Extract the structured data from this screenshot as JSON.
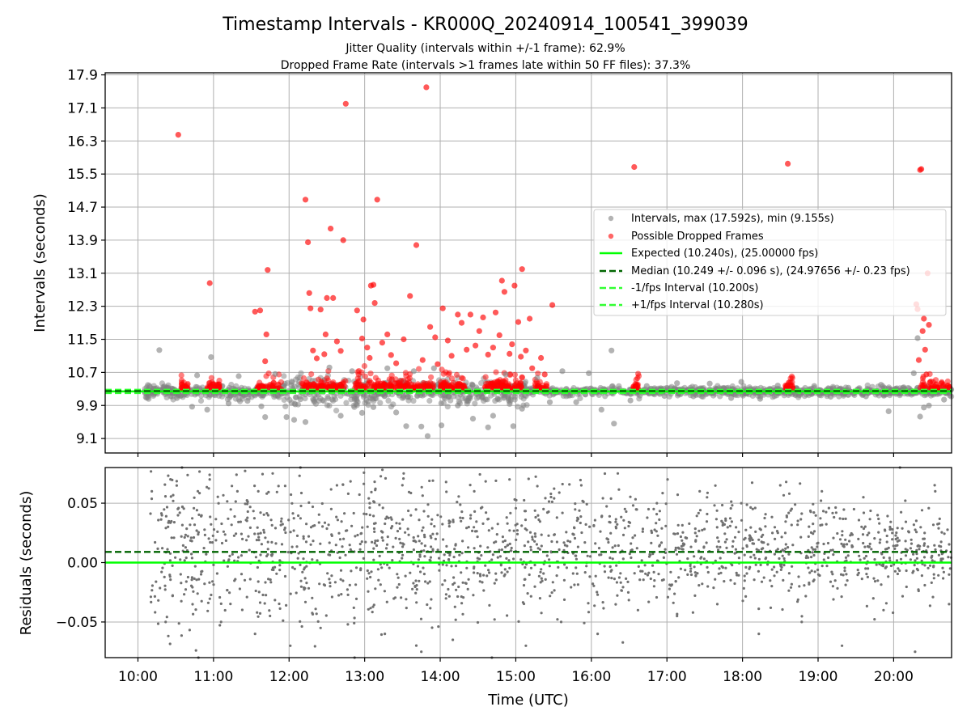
{
  "chart_data": [
    {
      "type": "scatter",
      "panel": "top",
      "title": "Timestamp Intervals - KR000Q_20240914_100541_399039",
      "subtitle_lines": [
        "Jitter Quality (intervals within +/-1 frame): 62.9%",
        "Dropped Frame Rate (intervals >1 frames late within 50 FF files): 37.3%"
      ],
      "ylabel": "Intervals (seconds)",
      "xlim": [
        "09:34",
        "20:46"
      ],
      "ylim": [
        8.75,
        17.95
      ],
      "yticks": [
        "9.1",
        "9.9",
        "10.7",
        "11.5",
        "12.3",
        "13.1",
        "13.9",
        "14.7",
        "15.5",
        "16.3",
        "17.1",
        "17.9"
      ],
      "grid": true,
      "legend_placement": "center-right",
      "legend": [
        {
          "label": "Intervals, max (17.592s), min (9.155s)",
          "kind": "marker",
          "color": "#808080"
        },
        {
          "label": "Possible Dropped Frames",
          "kind": "marker",
          "color": "#ff0000"
        },
        {
          "label": "Expected (10.240s), (25.00000 fps)",
          "kind": "solid",
          "color": "#00ff00"
        },
        {
          "label": "Median (10.249 +/- 0.096 s), (24.97656 +/- 0.23 fps)",
          "kind": "dashed",
          "color": "#006400"
        },
        {
          "label": "-1/fps Interval (10.200s)",
          "kind": "dashed",
          "color": "#32ff32"
        },
        {
          "label": "+1/fps Interval (10.280s)",
          "kind": "dashed",
          "color": "#32ff32"
        }
      ],
      "reference_lines": {
        "expected": 10.24,
        "median": 10.249,
        "minus_one_fps": 10.2,
        "plus_one_fps": 10.28
      },
      "normal_intervals": [
        [
          "10:17",
          11.24
        ],
        [
          "10:31",
          10.08
        ],
        [
          "10:43",
          9.87
        ],
        [
          "10:47",
          10.63
        ],
        [
          "10:55",
          9.8
        ],
        [
          "10:58",
          11.07
        ],
        [
          "11:12",
          9.95
        ],
        [
          "11:20",
          10.61
        ],
        [
          "11:27",
          10.01
        ],
        [
          "11:38",
          9.88
        ],
        [
          "11:41",
          9.62
        ],
        [
          "11:49",
          10.66
        ],
        [
          "11:58",
          9.62
        ],
        [
          "12:04",
          9.55
        ],
        [
          "12:09",
          10.05
        ],
        [
          "12:13",
          9.5
        ],
        [
          "12:20",
          9.99
        ],
        [
          "12:32",
          10.82
        ],
        [
          "12:41",
          9.65
        ],
        [
          "12:50",
          10.73
        ],
        [
          "12:58",
          9.72
        ],
        [
          "13:07",
          9.86
        ],
        [
          "13:18",
          10.8
        ],
        [
          "13:25",
          9.73
        ],
        [
          "13:33",
          9.4
        ],
        [
          "13:39",
          10.73
        ],
        [
          "13:45",
          9.39
        ],
        [
          "13:50",
          9.16
        ],
        [
          "13:55",
          10.8
        ],
        [
          "14:01",
          9.42
        ],
        [
          "14:14",
          9.9
        ],
        [
          "14:26",
          9.58
        ],
        [
          "14:38",
          9.37
        ],
        [
          "14:42",
          9.65
        ],
        [
          "14:52",
          10.65
        ],
        [
          "14:58",
          9.4
        ],
        [
          "15:05",
          9.82
        ],
        [
          "15:17",
          10.57
        ],
        [
          "15:27",
          9.98
        ],
        [
          "15:37",
          10.73
        ],
        [
          "15:48",
          9.98
        ],
        [
          "15:58",
          10.68
        ],
        [
          "16:08",
          9.8
        ],
        [
          "16:16",
          11.23
        ],
        [
          "16:18",
          9.46
        ],
        [
          "16:31",
          10.02
        ],
        [
          "16:44",
          10.37
        ],
        [
          "16:58",
          10.13
        ],
        [
          "17:08",
          10.44
        ],
        [
          "17:21",
          10.12
        ],
        [
          "17:34",
          10.43
        ],
        [
          "17:51",
          10.08
        ],
        [
          "17:59",
          10.47
        ],
        [
          "18:14",
          10.06
        ],
        [
          "18:28",
          10.38
        ],
        [
          "18:42",
          10.15
        ],
        [
          "18:57",
          10.37
        ],
        [
          "19:10",
          10.11
        ],
        [
          "19:24",
          10.33
        ],
        [
          "19:38",
          10.12
        ],
        [
          "19:50",
          10.4
        ],
        [
          "19:56",
          9.76
        ],
        [
          "20:08",
          10.34
        ],
        [
          "20:16",
          10.68
        ],
        [
          "20:19",
          11.53
        ],
        [
          "20:21",
          9.63
        ],
        [
          "20:24",
          9.85
        ],
        [
          "20:28",
          9.9
        ],
        [
          "20:40",
          10.04
        ]
      ],
      "dropped_frames": [
        [
          "10:32",
          16.45
        ],
        [
          "10:57",
          12.86
        ],
        [
          "11:33",
          12.17
        ],
        [
          "11:37",
          12.2
        ],
        [
          "11:41",
          10.97
        ],
        [
          "11:42",
          11.62
        ],
        [
          "11:43",
          13.18
        ],
        [
          "12:13",
          14.88
        ],
        [
          "12:15",
          13.85
        ],
        [
          "12:16",
          12.62
        ],
        [
          "12:17",
          12.25
        ],
        [
          "12:19",
          11.23
        ],
        [
          "12:22",
          11.04
        ],
        [
          "12:25",
          12.22
        ],
        [
          "12:28",
          11.14
        ],
        [
          "12:29",
          11.62
        ],
        [
          "12:30",
          12.5
        ],
        [
          "12:33",
          14.18
        ],
        [
          "12:35",
          12.5
        ],
        [
          "12:38",
          11.45
        ],
        [
          "12:41",
          11.22
        ],
        [
          "12:43",
          13.9
        ],
        [
          "12:45",
          17.2
        ],
        [
          "12:54",
          12.2
        ],
        [
          "12:58",
          11.52
        ],
        [
          "12:59",
          11.98
        ],
        [
          "13:02",
          11.3
        ],
        [
          "13:04",
          11.05
        ],
        [
          "13:05",
          12.8
        ],
        [
          "13:07",
          12.82
        ],
        [
          "13:08",
          12.38
        ],
        [
          "13:10",
          14.88
        ],
        [
          "13:14",
          11.42
        ],
        [
          "13:18",
          11.62
        ],
        [
          "13:21",
          11.12
        ],
        [
          "13:25",
          10.92
        ],
        [
          "13:31",
          11.5
        ],
        [
          "13:36",
          12.55
        ],
        [
          "13:41",
          13.78
        ],
        [
          "13:46",
          11.0
        ],
        [
          "13:49",
          17.6
        ],
        [
          "13:52",
          11.8
        ],
        [
          "13:56",
          11.55
        ],
        [
          "13:58",
          10.9
        ],
        [
          "14:02",
          12.25
        ],
        [
          "14:06",
          11.47
        ],
        [
          "14:09",
          11.1
        ],
        [
          "14:14",
          12.1
        ],
        [
          "14:17",
          11.9
        ],
        [
          "14:21",
          11.25
        ],
        [
          "14:24",
          12.1
        ],
        [
          "14:28",
          11.35
        ],
        [
          "14:31",
          11.7
        ],
        [
          "14:34",
          12.03
        ],
        [
          "14:38",
          11.13
        ],
        [
          "14:42",
          11.3
        ],
        [
          "14:44",
          12.15
        ],
        [
          "14:47",
          11.6
        ],
        [
          "14:49",
          12.92
        ],
        [
          "14:51",
          12.65
        ],
        [
          "14:55",
          11.15
        ],
        [
          "14:57",
          11.38
        ],
        [
          "14:59",
          12.8
        ],
        [
          "15:02",
          11.92
        ],
        [
          "15:04",
          11.08
        ],
        [
          "15:05",
          13.2
        ],
        [
          "15:08",
          11.23
        ],
        [
          "15:11",
          12.0
        ],
        [
          "15:13",
          10.8
        ],
        [
          "15:20",
          11.05
        ],
        [
          "15:23",
          10.65
        ],
        [
          "15:29",
          12.33
        ],
        [
          "16:34",
          15.67
        ],
        [
          "18:36",
          15.75
        ],
        [
          "20:18",
          12.35
        ],
        [
          "20:19",
          12.23
        ],
        [
          "20:20",
          11.0
        ],
        [
          "20:21",
          15.6
        ],
        [
          "20:22",
          15.62
        ],
        [
          "20:23",
          11.7
        ],
        [
          "20:24",
          12.0
        ],
        [
          "20:25",
          11.25
        ],
        [
          "20:26",
          10.65
        ],
        [
          "20:27",
          13.1
        ],
        [
          "20:28",
          11.85
        ]
      ]
    },
    {
      "type": "scatter",
      "panel": "bottom",
      "xlabel": "Time (UTC)",
      "ylabel": "Residuals (seconds)",
      "xticks": [
        "10:00",
        "11:00",
        "12:00",
        "13:00",
        "14:00",
        "15:00",
        "16:00",
        "17:00",
        "18:00",
        "19:00",
        "20:00"
      ],
      "yticks": [
        "−0.05",
        "0.00",
        "0.05"
      ],
      "ylim": [
        -0.08,
        0.08
      ],
      "grid": true,
      "reference_lines": {
        "zero": 0.0,
        "median_offset": 0.009
      },
      "residuals": [
        [
          "10:11",
          0.06
        ],
        [
          "10:22",
          -0.05
        ],
        [
          "10:35",
          0.08
        ],
        [
          "10:48",
          -0.08
        ],
        [
          "10:57",
          0.07
        ],
        [
          "11:06",
          -0.05
        ],
        [
          "11:19",
          0.06
        ],
        [
          "11:33",
          -0.06
        ],
        [
          "11:47",
          0.075
        ],
        [
          "12:01",
          -0.07
        ],
        [
          "12:09",
          0.08
        ],
        [
          "12:25",
          -0.055
        ],
        [
          "12:38",
          0.065
        ],
        [
          "12:52",
          -0.08
        ],
        [
          "13:04",
          0.05
        ],
        [
          "13:16",
          -0.06
        ],
        [
          "13:31",
          0.075
        ],
        [
          "13:45",
          -0.075
        ],
        [
          "13:58",
          0.04
        ],
        [
          "14:10",
          -0.065
        ],
        [
          "14:27",
          0.06
        ],
        [
          "14:41",
          -0.08
        ],
        [
          "14:55",
          0.07
        ],
        [
          "15:08",
          -0.07
        ],
        [
          "15:22",
          0.045
        ],
        [
          "15:36",
          -0.05
        ],
        [
          "15:52",
          0.065
        ],
        [
          "16:05",
          -0.06
        ],
        [
          "16:21",
          0.075
        ],
        [
          "16:37",
          -0.04
        ],
        [
          "16:52",
          0.05
        ],
        [
          "17:08",
          -0.045
        ],
        [
          "17:26",
          0.06
        ],
        [
          "17:40",
          -0.035
        ],
        [
          "17:59",
          0.05
        ],
        [
          "18:13",
          -0.06
        ],
        [
          "18:30",
          0.065
        ],
        [
          "18:47",
          -0.05
        ],
        [
          "19:03",
          0.06
        ],
        [
          "19:19",
          -0.07
        ],
        [
          "19:36",
          0.055
        ],
        [
          "19:52",
          -0.04
        ],
        [
          "20:05",
          0.08
        ],
        [
          "20:17",
          -0.075
        ],
        [
          "20:33",
          0.06
        ],
        [
          "20:44",
          -0.035
        ]
      ]
    }
  ]
}
